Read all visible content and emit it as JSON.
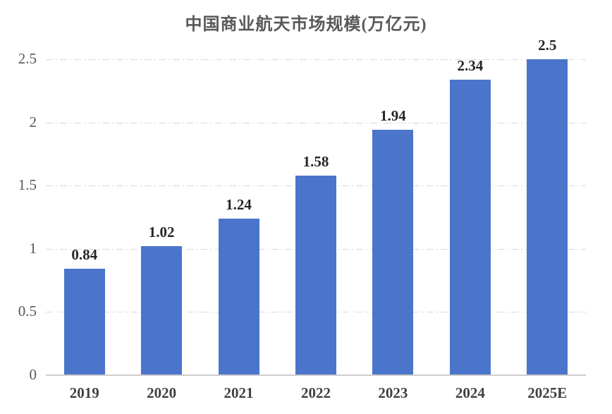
{
  "chart_data": {
    "type": "bar",
    "title": "中国商业航天市场规模(万亿元)",
    "categories": [
      "2019",
      "2020",
      "2021",
      "2022",
      "2023",
      "2024",
      "2025E"
    ],
    "values": [
      0.84,
      1.02,
      1.24,
      1.58,
      1.94,
      2.34,
      2.5
    ],
    "value_labels": [
      "0.84",
      "1.02",
      "1.24",
      "1.58",
      "1.94",
      "2.34",
      "2.5"
    ],
    "xlabel": "",
    "ylabel": "",
    "ylim": [
      0,
      2.5
    ],
    "ytick_step": 0.5,
    "ytick_labels": [
      "0",
      "0.5",
      "1",
      "1.5",
      "2",
      "2.5"
    ],
    "grid": "horizontal-dash-dot",
    "legend": "none",
    "colors": {
      "bar": "#4a75cb",
      "gridline": "#d9d9d9",
      "axis_line": "#cfcdcd",
      "title_text": "#595959",
      "y_tick_text": "#595959",
      "x_tick_text": "#404040",
      "data_label_text": "#262626",
      "background": "#ffffff"
    }
  }
}
